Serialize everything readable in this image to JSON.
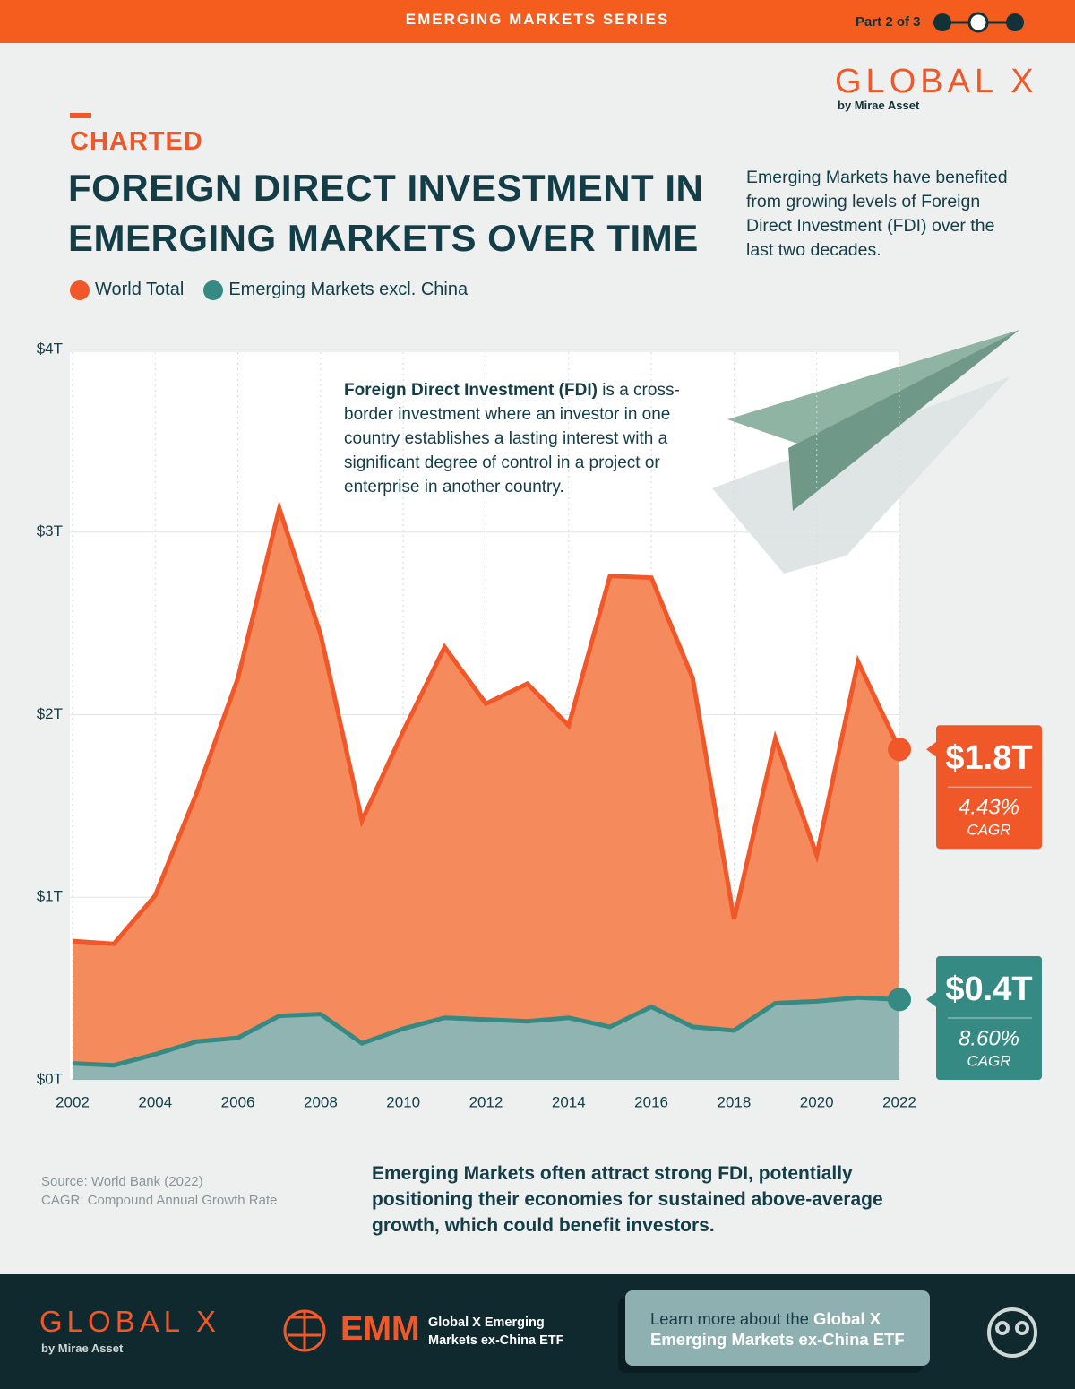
{
  "header": {
    "series": "EMERGING MARKETS SERIES",
    "part": "Part 2 of 3"
  },
  "logo": {
    "name": "GLOBAL X",
    "byline": "by Mirae Asset"
  },
  "kicker": "CHARTED",
  "intro": "Emerging Markets have benefited from growing levels of Foreign Direct Investment (FDI) over the last two decades.",
  "definition": {
    "term": "Foreign Direct Investment (FDI)",
    "text": "is a cross-border investment where an investor in one country establishes a lasting interest with a significant degree of control in a project or enterprise in another country."
  },
  "chart_data": {
    "type": "area",
    "title": "FOREIGN DIRECT INVESTMENT IN EMERGING MARKETS OVER TIME",
    "x": [
      2002,
      2003,
      2004,
      2005,
      2006,
      2007,
      2008,
      2009,
      2010,
      2011,
      2012,
      2013,
      2014,
      2015,
      2016,
      2017,
      2018,
      2019,
      2020,
      2021,
      2022
    ],
    "series": [
      {
        "name": "World Total",
        "color": "#f0582a",
        "fill": "#f58b5c",
        "values": [
          0.76,
          0.745,
          1.01,
          1.57,
          2.2,
          3.13,
          2.44,
          1.42,
          1.91,
          2.37,
          2.06,
          2.17,
          1.94,
          2.76,
          2.75,
          2.2,
          0.88,
          1.87,
          1.23,
          2.29,
          1.81
        ],
        "value_labels": [
          null,
          null,
          null,
          null,
          null,
          null,
          null,
          null,
          null,
          null,
          null,
          null,
          null,
          null,
          null,
          null,
          null,
          null,
          null,
          null,
          "$1.8T"
        ],
        "cagr": "4.43%",
        "cagr_caption": "CAGR"
      },
      {
        "name": "Emerging Markets excl. China",
        "color": "#358a84",
        "fill": "#8fb4b2",
        "values": [
          0.09,
          0.08,
          0.14,
          0.21,
          0.23,
          0.35,
          0.36,
          0.2,
          0.28,
          0.34,
          0.33,
          0.32,
          0.34,
          0.29,
          0.4,
          0.29,
          0.27,
          0.42,
          0.43,
          0.45,
          0.44
        ],
        "value_labels": [
          null,
          null,
          null,
          null,
          null,
          null,
          null,
          null,
          null,
          null,
          null,
          null,
          null,
          null,
          null,
          null,
          null,
          null,
          null,
          null,
          "$0.4T"
        ],
        "cagr": "8.60%",
        "cagr_caption": "CAGR"
      }
    ],
    "xlim": [
      2002,
      2022
    ],
    "xticks": [
      2002,
      2004,
      2006,
      2008,
      2010,
      2012,
      2014,
      2016,
      2018,
      2020,
      2022
    ],
    "ylim": [
      0,
      4
    ],
    "yticks": [
      {
        "value": 0,
        "label": "$0T"
      },
      {
        "value": 1,
        "label": "$1T"
      },
      {
        "value": 2,
        "label": "$2T"
      },
      {
        "value": 3,
        "label": "$3T"
      },
      {
        "value": 4,
        "label": "$4T"
      }
    ],
    "grid": true,
    "legend": "top-left"
  },
  "notes": {
    "source": "Source: World Bank (2022)",
    "cagr": "CAGR: Compound Annual Growth Rate"
  },
  "conclusion": "Emerging Markets often attract strong FDI, potentially positioning their economies for sustained above-average growth, which could benefit investors.",
  "footer": {
    "logo": "GLOBAL X",
    "byline": "by Mirae Asset",
    "fund_ticker": "EMM",
    "fund_name": "Global X Emerging Markets ex-China ETF",
    "cta_lead": "Learn more about the",
    "cta_fund": "Global X Emerging Markets ex-China ETF"
  }
}
